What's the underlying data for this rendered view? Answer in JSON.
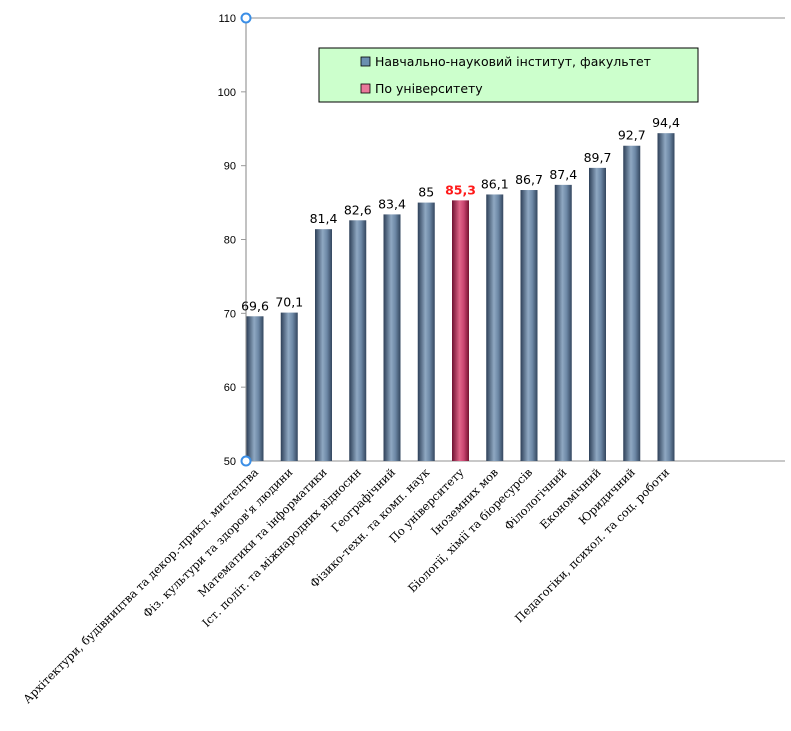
{
  "chart_data": {
    "type": "bar",
    "categories": [
      "Архітектури, будівництва та декор.-прикл. мистецтва",
      "Фіз. культури та здоров'я людини",
      "Математики та інформатики",
      "Іст. політ. та міжнародних відносин",
      "Географічний",
      "Фізико-техн. та комп. наук",
      "По університету",
      "Іноземних мов",
      "Біології, хімії та біоресурсів",
      "Філологічний",
      "Економічний",
      "Юридичний",
      "Педагогіки, психол. та соц. роботи"
    ],
    "values": [
      69.6,
      70.1,
      81.4,
      82.6,
      83.4,
      85,
      85.3,
      86.1,
      86.7,
      87.4,
      89.7,
      92.7,
      94.4
    ],
    "value_labels": [
      "69,6",
      "70,1",
      "81,4",
      "82,6",
      "83,4",
      "85",
      "85,3",
      "86,1",
      "86,7",
      "87,4",
      "89,7",
      "92,7",
      "94,4"
    ],
    "highlight_index": 6,
    "ylim": [
      50,
      110
    ],
    "yticks": [
      50,
      60,
      70,
      80,
      90,
      100,
      110
    ],
    "grid": false,
    "legend": {
      "position": "top",
      "entries": [
        {
          "label": "Навчально-науковий інститут, факультет",
          "color": "#6b8fb0"
        },
        {
          "label": "По університету",
          "color": "#e9789a"
        }
      ]
    },
    "colors": {
      "bar": "#5d7d9c",
      "bar_highlight": "#c0385e",
      "highlight_label": "#ff1a1a",
      "legend_bg": "#ccffcc",
      "axis_marker": "#3a8ee6"
    }
  }
}
